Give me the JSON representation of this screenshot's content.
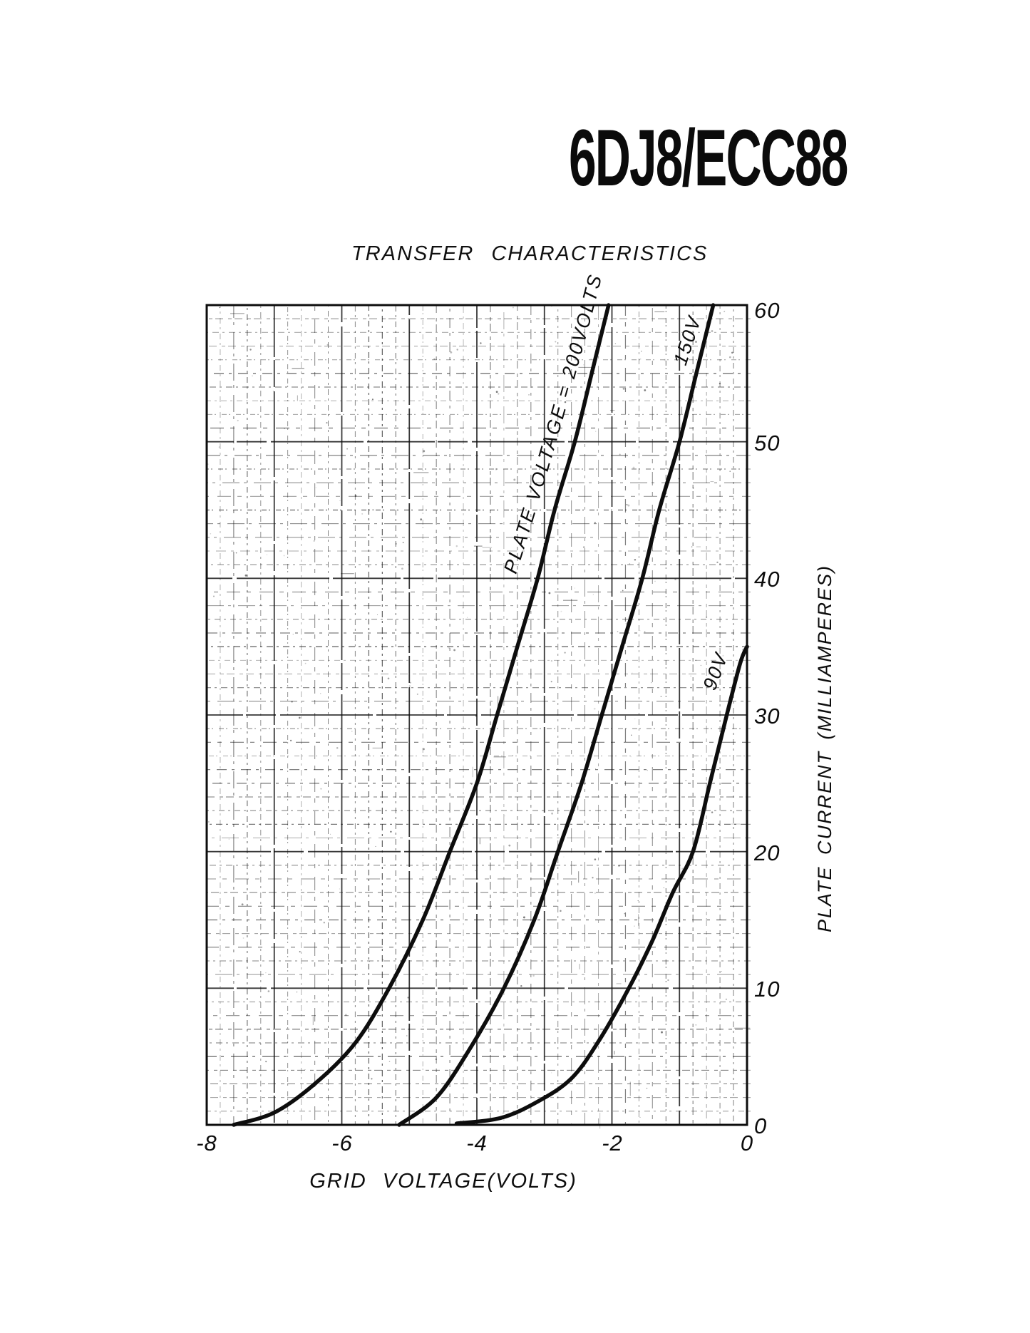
{
  "page": {
    "title": "6DJ8/ECC88"
  },
  "chart_data": {
    "type": "line",
    "title": "TRANSFER CHARACTERISTICS",
    "xlabel": "GRID VOLTAGE(VOLTS)",
    "ylabel": "PLATE CURRENT (MILLIAMPERES)",
    "xlim": [
      -8,
      0
    ],
    "ylim": [
      0,
      60
    ],
    "x_ticks": [
      -8,
      -6,
      -4,
      -2,
      0
    ],
    "x_tick_labels": [
      "-8",
      "-6",
      "-4",
      "-2",
      "0"
    ],
    "y_ticks": [
      0,
      10,
      20,
      30,
      40,
      50,
      60
    ],
    "y_tick_labels": [
      "0",
      "10",
      "20",
      "30",
      "40",
      "50",
      "60"
    ],
    "grid": {
      "x_minor": 0.2,
      "x_major": 1,
      "y_minor": 1,
      "y_major": 10,
      "style": "broken-scan"
    },
    "legend_position": "labels-along-curves",
    "ink_color": "#0d0d0d",
    "series": [
      {
        "name": "PLATE VOLTAGE = 200VOLTS",
        "plate_voltage": 200,
        "points": [
          [
            -7.6,
            0
          ],
          [
            -7.0,
            0.9
          ],
          [
            -6.4,
            3
          ],
          [
            -5.8,
            6
          ],
          [
            -5.3,
            10
          ],
          [
            -4.8,
            15
          ],
          [
            -4.4,
            20
          ],
          [
            -4.0,
            25
          ],
          [
            -3.7,
            30
          ],
          [
            -3.4,
            35
          ],
          [
            -3.1,
            40
          ],
          [
            -2.85,
            45
          ],
          [
            -2.55,
            50
          ],
          [
            -2.3,
            55
          ],
          [
            -2.05,
            60
          ]
        ]
      },
      {
        "name": "150V",
        "plate_voltage": 150,
        "points": [
          [
            -5.15,
            0
          ],
          [
            -4.6,
            2
          ],
          [
            -4.1,
            5.6
          ],
          [
            -3.6,
            10
          ],
          [
            -3.15,
            15
          ],
          [
            -2.8,
            20
          ],
          [
            -2.45,
            25
          ],
          [
            -2.15,
            30
          ],
          [
            -1.85,
            35
          ],
          [
            -1.55,
            40
          ],
          [
            -1.3,
            45
          ],
          [
            -1.0,
            50
          ],
          [
            -0.75,
            55
          ],
          [
            -0.5,
            60
          ]
        ]
      },
      {
        "name": "90V",
        "plate_voltage": 90,
        "points": [
          [
            -4.3,
            0.1
          ],
          [
            -3.65,
            0.5
          ],
          [
            -3.1,
            1.7
          ],
          [
            -2.6,
            3.4
          ],
          [
            -2.2,
            6.1
          ],
          [
            -1.75,
            10
          ],
          [
            -1.4,
            13.5
          ],
          [
            -1.1,
            17
          ],
          [
            -0.8,
            20
          ],
          [
            -0.55,
            25
          ],
          [
            -0.3,
            30
          ],
          [
            -0.1,
            33.8
          ],
          [
            0,
            35
          ]
        ]
      }
    ]
  }
}
